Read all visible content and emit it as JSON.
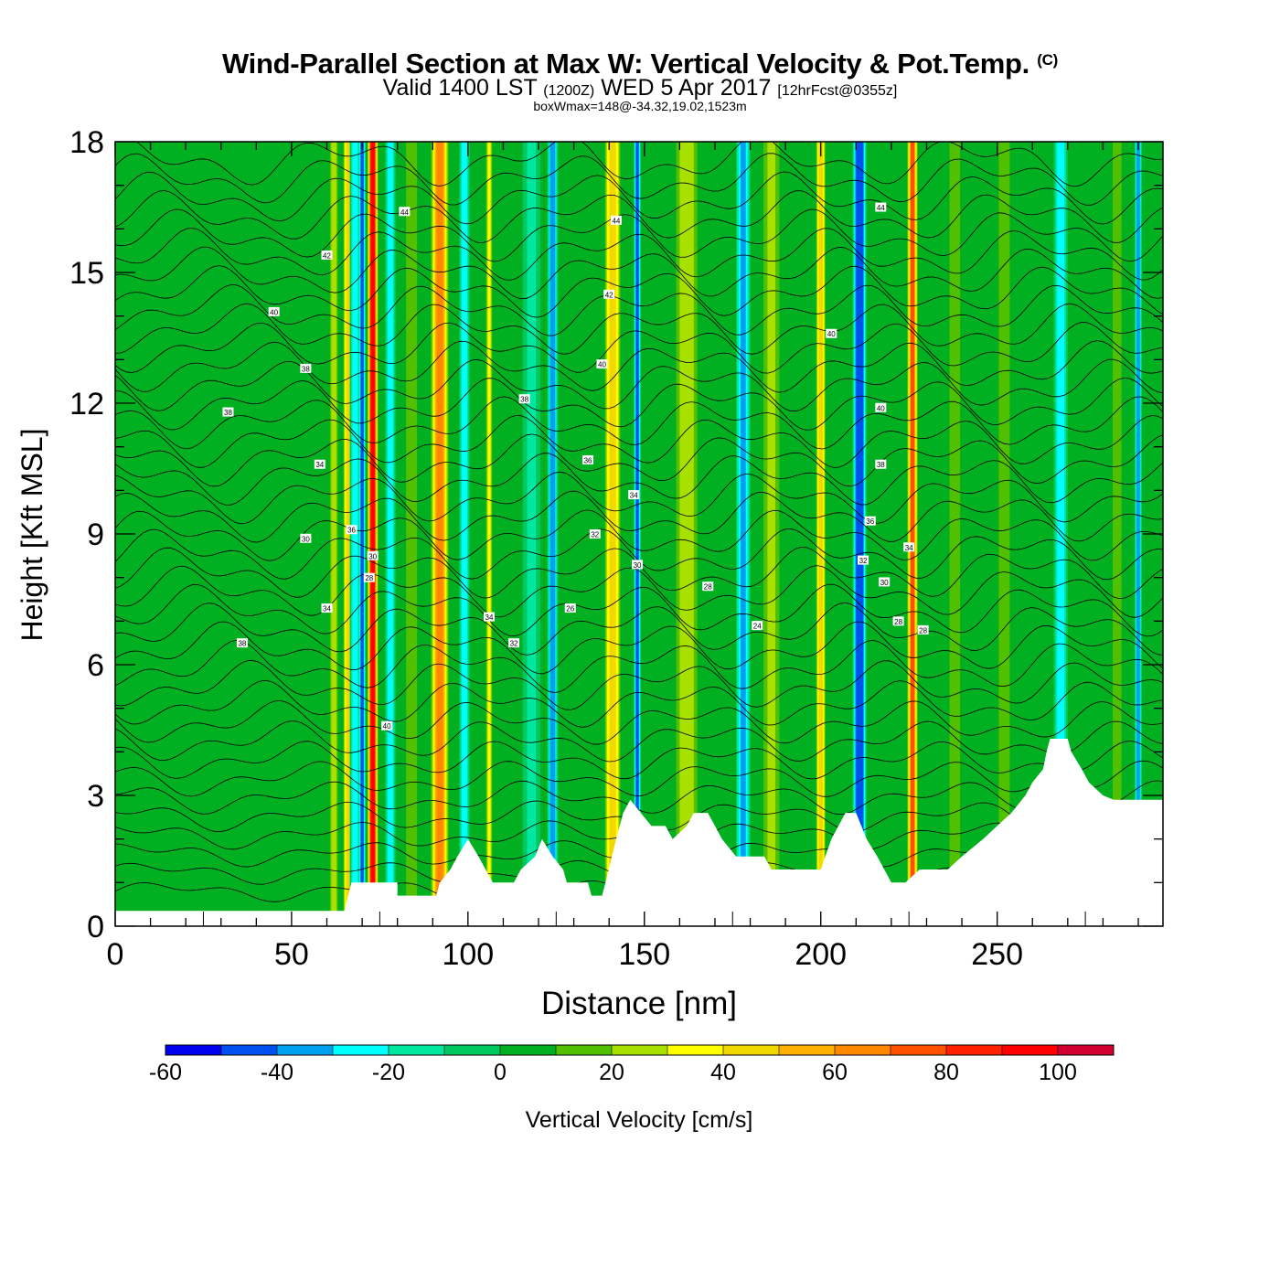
{
  "title": {
    "main": "Wind-Parallel Section at Max W: Vertical Velocity & Pot.Temp.",
    "copyright": "(C)",
    "valid_prefix": "Valid 1400 LST",
    "valid_utc": "(1200Z)",
    "valid_date": "WED 5 Apr 2017",
    "forecast": "[12hrFcst@0355z]",
    "box_info": "boxWmax=148@-34.32,19.02,1523m"
  },
  "chart_data": {
    "type": "heatmap",
    "xlabel": "Distance [nm]",
    "ylabel": "Height [Kft MSL]",
    "xlim": [
      0,
      297
    ],
    "ylim": [
      0,
      18
    ],
    "x_ticks": [
      0,
      50,
      100,
      150,
      200,
      250
    ],
    "y_ticks": [
      0,
      3,
      6,
      9,
      12,
      15,
      18
    ],
    "colorbar": {
      "label": "Vertical Velocity [cm/s]",
      "range": [
        -60,
        110
      ],
      "tick_values": [
        -60,
        -40,
        -20,
        0,
        20,
        40,
        60,
        80,
        100
      ],
      "colors": [
        "#0000ee",
        "#0050f0",
        "#00a0f0",
        "#00ffff",
        "#00e8a0",
        "#00c860",
        "#00b020",
        "#50c000",
        "#a8e000",
        "#ffff00",
        "#f0d800",
        "#ffb000",
        "#ff8800",
        "#ff5000",
        "#ff2000",
        "#ff0000",
        "#d00030"
      ]
    },
    "vertical_velocity_columns": [
      {
        "x": 8,
        "w": 16,
        "value": 4
      },
      {
        "x": 38,
        "w": 10,
        "value": 6
      },
      {
        "x": 62,
        "w": 3,
        "value": 25
      },
      {
        "x": 66,
        "w": 3,
        "value": 45
      },
      {
        "x": 68,
        "w": 3,
        "value": -25
      },
      {
        "x": 70,
        "w": 2,
        "value": -45
      },
      {
        "x": 73,
        "w": 3,
        "value": 95
      },
      {
        "x": 78,
        "w": 3,
        "value": -25
      },
      {
        "x": 84,
        "w": 5,
        "value": 15
      },
      {
        "x": 92,
        "w": 5,
        "value": 65
      },
      {
        "x": 99,
        "w": 3,
        "value": -25
      },
      {
        "x": 106,
        "w": 2,
        "value": 35
      },
      {
        "x": 118,
        "w": 5,
        "value": -15
      },
      {
        "x": 124,
        "w": 3,
        "value": -40
      },
      {
        "x": 141,
        "w": 5,
        "value": 45
      },
      {
        "x": 148,
        "w": 2,
        "value": -45
      },
      {
        "x": 162,
        "w": 8,
        "value": 25
      },
      {
        "x": 178,
        "w": 4,
        "value": -35
      },
      {
        "x": 186,
        "w": 6,
        "value": 20
      },
      {
        "x": 200,
        "w": 3,
        "value": 45
      },
      {
        "x": 211,
        "w": 4,
        "value": -50
      },
      {
        "x": 226,
        "w": 3,
        "value": 70
      },
      {
        "x": 238,
        "w": 6,
        "value": 12
      },
      {
        "x": 252,
        "w": 5,
        "value": 15
      },
      {
        "x": 268,
        "w": 4,
        "value": -25
      },
      {
        "x": 284,
        "w": 4,
        "value": 15
      },
      {
        "x": 290,
        "w": 2,
        "value": -40
      }
    ],
    "terrain_kft": [
      [
        0,
        0.35
      ],
      [
        65,
        0.35
      ],
      [
        66,
        0.7
      ],
      [
        67,
        1.0
      ],
      [
        80,
        1.0
      ],
      [
        80,
        0.7
      ],
      [
        91,
        0.7
      ],
      [
        92,
        1.0
      ],
      [
        95,
        1.3
      ],
      [
        97,
        1.6
      ],
      [
        100,
        2.0
      ],
      [
        103,
        1.6
      ],
      [
        105,
        1.3
      ],
      [
        107,
        1.0
      ],
      [
        113,
        1.0
      ],
      [
        115,
        1.3
      ],
      [
        119,
        1.6
      ],
      [
        121,
        2.0
      ],
      [
        124,
        1.6
      ],
      [
        127,
        1.3
      ],
      [
        128,
        1.0
      ],
      [
        134,
        1.0
      ],
      [
        135,
        0.7
      ],
      [
        138,
        0.7
      ],
      [
        139,
        1.0
      ],
      [
        142,
        2.0
      ],
      [
        144,
        2.6
      ],
      [
        146,
        2.9
      ],
      [
        149,
        2.6
      ],
      [
        152,
        2.3
      ],
      [
        156,
        2.3
      ],
      [
        158,
        2.0
      ],
      [
        162,
        2.3
      ],
      [
        164,
        2.6
      ],
      [
        168,
        2.6
      ],
      [
        170,
        2.3
      ],
      [
        172,
        2.0
      ],
      [
        176,
        1.6
      ],
      [
        184,
        1.6
      ],
      [
        186,
        1.3
      ],
      [
        200,
        1.3
      ],
      [
        203,
        2.0
      ],
      [
        205,
        2.3
      ],
      [
        207,
        2.6
      ],
      [
        210,
        2.6
      ],
      [
        213,
        2.0
      ],
      [
        216,
        1.6
      ],
      [
        218,
        1.3
      ],
      [
        220,
        1.0
      ],
      [
        224,
        1.0
      ],
      [
        228,
        1.3
      ],
      [
        236,
        1.3
      ],
      [
        240,
        1.6
      ],
      [
        246,
        2.0
      ],
      [
        250,
        2.3
      ],
      [
        254,
        2.6
      ],
      [
        258,
        3.0
      ],
      [
        260,
        3.3
      ],
      [
        263,
        3.6
      ],
      [
        264,
        4.0
      ],
      [
        265,
        4.3
      ],
      [
        270,
        4.3
      ],
      [
        271,
        4.0
      ],
      [
        274,
        3.6
      ],
      [
        276,
        3.3
      ],
      [
        280,
        3.0
      ],
      [
        283,
        2.9
      ],
      [
        297,
        2.9
      ]
    ],
    "theta_contour_labels": [
      {
        "x": 82,
        "y": 16.4,
        "text": "44"
      },
      {
        "x": 142,
        "y": 16.2,
        "text": "44"
      },
      {
        "x": 217,
        "y": 16.5,
        "text": "44"
      },
      {
        "x": 60,
        "y": 15.4,
        "text": "42"
      },
      {
        "x": 140,
        "y": 14.5,
        "text": "42"
      },
      {
        "x": 45,
        "y": 14.1,
        "text": "40"
      },
      {
        "x": 203,
        "y": 13.6,
        "text": "40"
      },
      {
        "x": 138,
        "y": 12.9,
        "text": "40"
      },
      {
        "x": 54,
        "y": 12.8,
        "text": "38"
      },
      {
        "x": 116,
        "y": 12.1,
        "text": "38"
      },
      {
        "x": 32,
        "y": 11.8,
        "text": "38"
      },
      {
        "x": 217,
        "y": 11.9,
        "text": "40"
      },
      {
        "x": 134,
        "y": 10.7,
        "text": "36"
      },
      {
        "x": 58,
        "y": 10.6,
        "text": "34"
      },
      {
        "x": 217,
        "y": 10.6,
        "text": "38"
      },
      {
        "x": 147,
        "y": 9.9,
        "text": "34"
      },
      {
        "x": 67,
        "y": 9.1,
        "text": "36"
      },
      {
        "x": 214,
        "y": 9.3,
        "text": "36"
      },
      {
        "x": 54,
        "y": 8.9,
        "text": "30"
      },
      {
        "x": 136,
        "y": 9.0,
        "text": "32"
      },
      {
        "x": 225,
        "y": 8.7,
        "text": "34"
      },
      {
        "x": 73,
        "y": 8.5,
        "text": "30"
      },
      {
        "x": 212,
        "y": 8.4,
        "text": "32"
      },
      {
        "x": 148,
        "y": 8.3,
        "text": "30"
      },
      {
        "x": 72,
        "y": 8.0,
        "text": "28"
      },
      {
        "x": 218,
        "y": 7.9,
        "text": "30"
      },
      {
        "x": 168,
        "y": 7.8,
        "text": "28"
      },
      {
        "x": 60,
        "y": 7.3,
        "text": "34"
      },
      {
        "x": 129,
        "y": 7.3,
        "text": "26"
      },
      {
        "x": 106,
        "y": 7.1,
        "text": "34"
      },
      {
        "x": 222,
        "y": 7.0,
        "text": "28"
      },
      {
        "x": 182,
        "y": 6.9,
        "text": "24"
      },
      {
        "x": 229,
        "y": 6.8,
        "text": "28"
      },
      {
        "x": 36,
        "y": 6.5,
        "text": "38"
      },
      {
        "x": 113,
        "y": 6.5,
        "text": "32"
      },
      {
        "x": 77,
        "y": 4.6,
        "text": "40"
      }
    ]
  }
}
